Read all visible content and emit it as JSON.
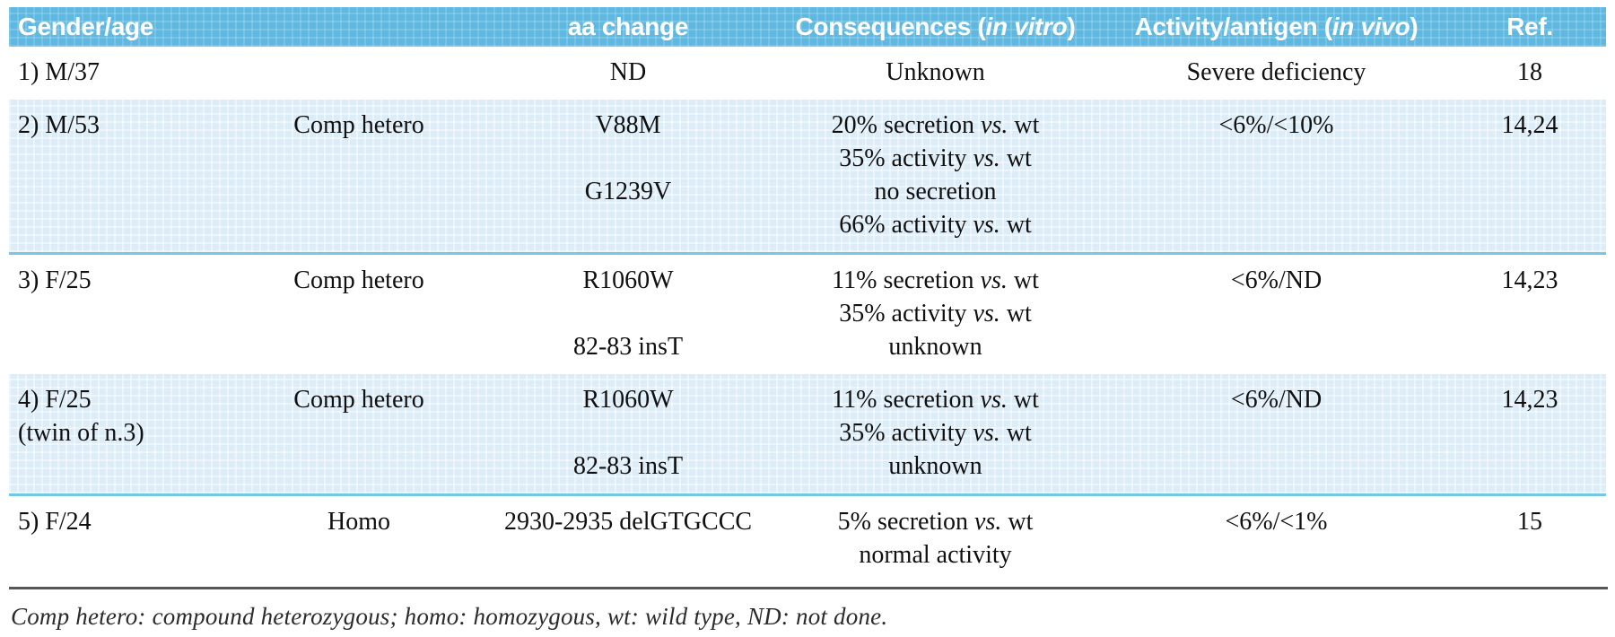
{
  "colors": {
    "header_bg": "#5fb8e0",
    "stripe_bg": "#dcedf8",
    "stripe_border": "#74c9e2",
    "rule": "#54585a",
    "text": "#101010"
  },
  "table": {
    "columns": [
      {
        "key": "gender",
        "label": "Gender/age"
      },
      {
        "key": "zygosity",
        "label": ""
      },
      {
        "key": "aa_change",
        "label": "aa change"
      },
      {
        "key": "consequences",
        "label": "Consequences (*in vitro*)"
      },
      {
        "key": "activity",
        "label": "Activity/antigen (*in vivo*)"
      },
      {
        "key": "ref",
        "label": "Ref."
      }
    ],
    "rows": [
      {
        "striped": false,
        "cells": {
          "gender": [
            "1) M/37"
          ],
          "zygosity": [
            ""
          ],
          "aa_change": [
            "ND"
          ],
          "consequences": [
            "Unknown"
          ],
          "activity": [
            "Severe deficiency"
          ],
          "ref": [
            "18"
          ]
        }
      },
      {
        "striped": true,
        "cells": {
          "gender": [
            "2) M/53"
          ],
          "zygosity": [
            "Comp hetero"
          ],
          "aa_change": [
            "V88M",
            "",
            "G1239V",
            ""
          ],
          "consequences": [
            "20% secretion *vs.* wt",
            "35% activity *vs.* wt",
            "no secretion",
            "66% activity *vs.* wt"
          ],
          "activity": [
            "<6%/<10%"
          ],
          "ref": [
            "14,24"
          ]
        }
      },
      {
        "striped": false,
        "cells": {
          "gender": [
            "3) F/25"
          ],
          "zygosity": [
            "Comp hetero"
          ],
          "aa_change": [
            "R1060W",
            "",
            "82-83 insT"
          ],
          "consequences": [
            "11% secretion *vs.* wt",
            "35% activity *vs.* wt",
            "unknown"
          ],
          "activity": [
            "<6%/ND"
          ],
          "ref": [
            "14,23"
          ]
        }
      },
      {
        "striped": true,
        "cells": {
          "gender": [
            "4) F/25",
            "(twin of n.3)"
          ],
          "zygosity": [
            "Comp hetero"
          ],
          "aa_change": [
            "R1060W",
            "",
            "82-83 insT"
          ],
          "consequences": [
            "11% secretion *vs.* wt",
            "35% activity *vs.* wt",
            "unknown"
          ],
          "activity": [
            "<6%/ND"
          ],
          "ref": [
            "14,23"
          ]
        }
      },
      {
        "striped": false,
        "cells": {
          "gender": [
            "5) F/24"
          ],
          "zygosity": [
            "Homo"
          ],
          "aa_change": [
            "2930-2935 delGTGCCC"
          ],
          "consequences": [
            "5% secretion *vs.* wt",
            "normal activity"
          ],
          "activity": [
            "<6%/<1%"
          ],
          "ref": [
            "15"
          ]
        }
      }
    ],
    "footnote": "Comp hetero: compound heterozygous; homo: homozygous, wt: wild type, ND: not done."
  }
}
